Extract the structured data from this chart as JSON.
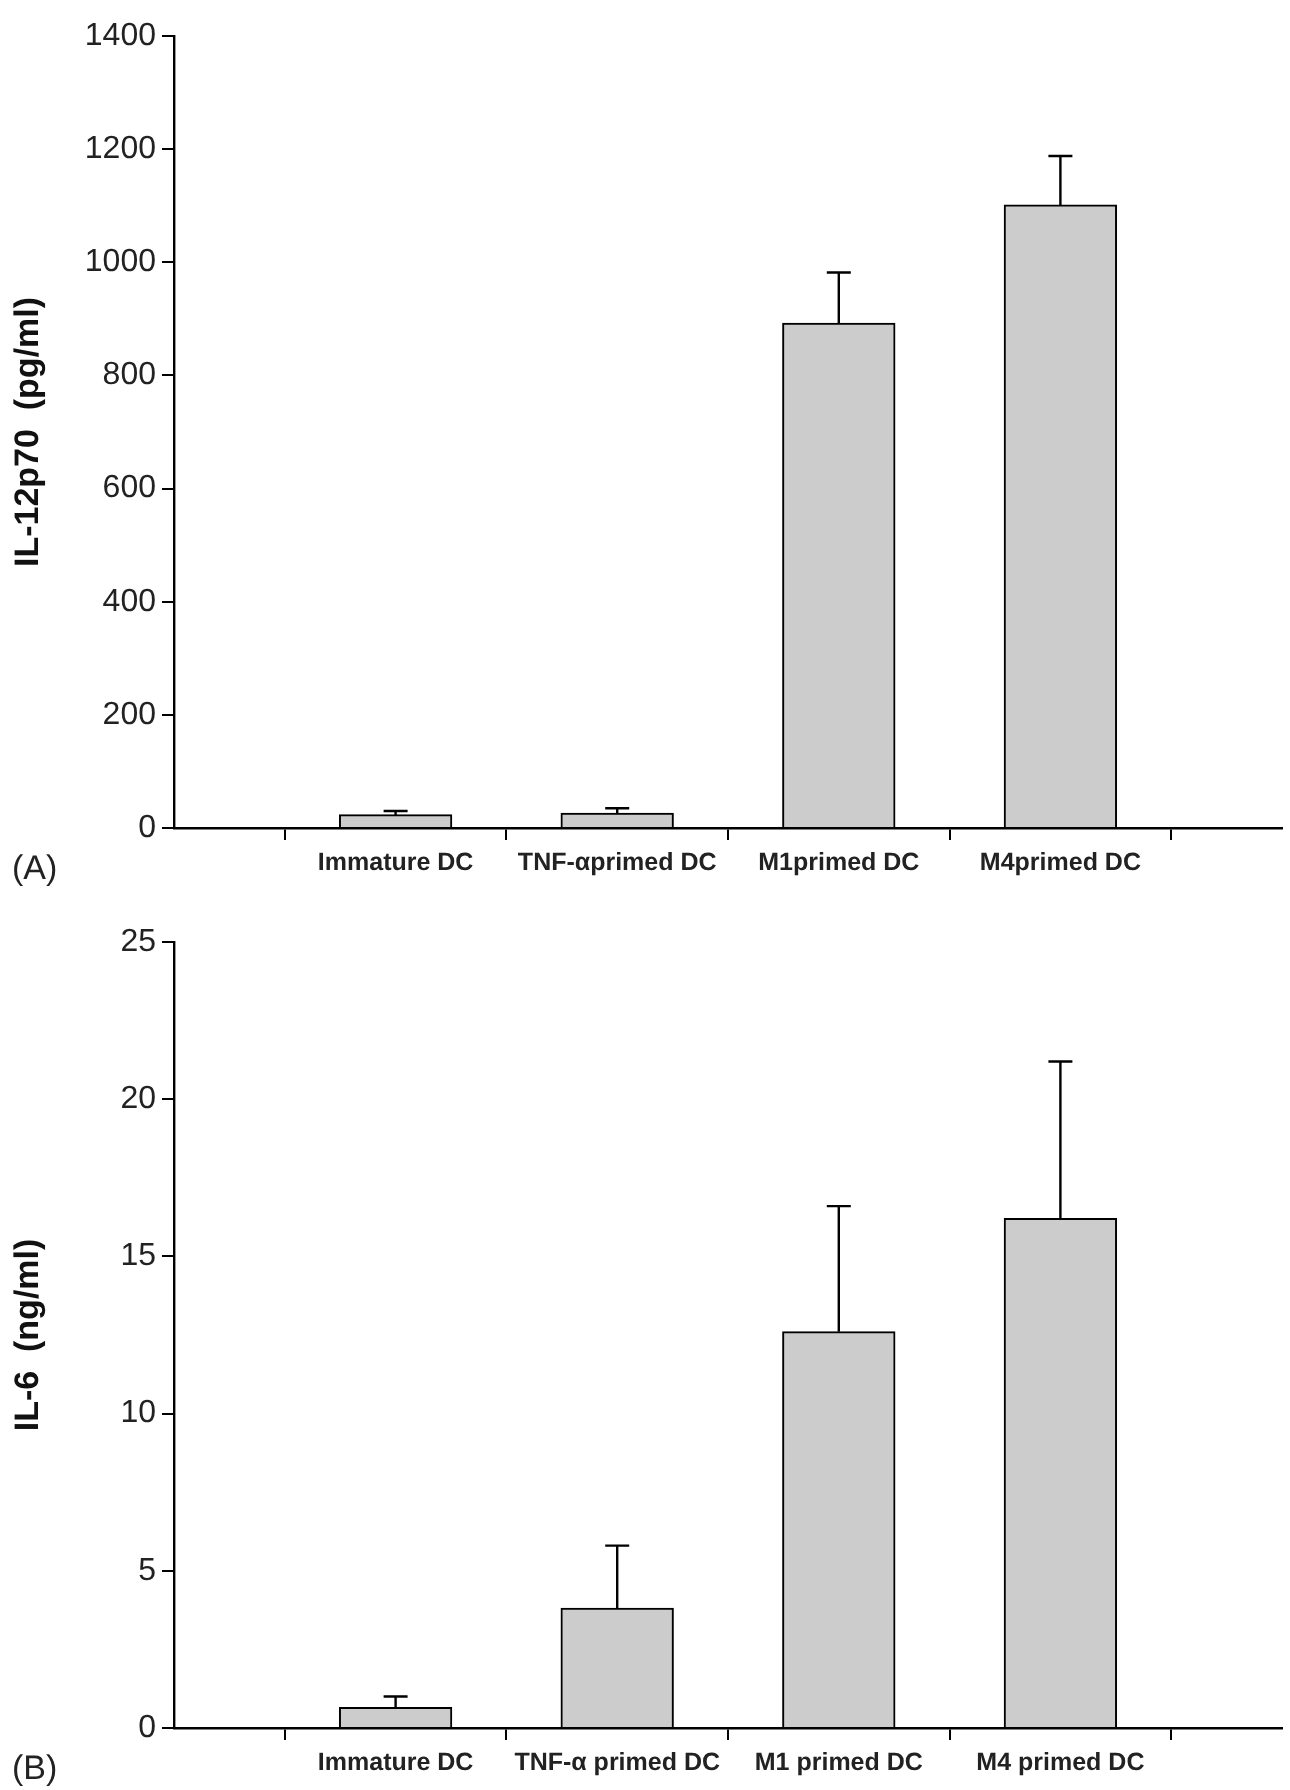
{
  "chart_data": [
    {
      "type": "bar",
      "ylabel": "IL-12p70  (pg/ml)",
      "categories": [
        null,
        "Immature DC",
        "TNF-αprimed DC",
        "M1primed DC",
        "M4primed DC",
        null
      ],
      "values": [
        null,
        23,
        26,
        892,
        1101,
        null
      ],
      "errors": [
        null,
        [
          23,
          30
        ],
        [
          26,
          35
        ],
        [
          892,
          982
        ],
        [
          1101,
          1188
        ],
        null
      ],
      "color": "#cccccc",
      "ylim": [
        0,
        1400
      ],
      "yticks": [
        0,
        200,
        400,
        600,
        800,
        1000,
        1200,
        1400
      ],
      "grid": false,
      "legend": false,
      "annotations": [
        "(A)"
      ]
    },
    {
      "type": "bar",
      "ylabel": "IL-6  (ng/ml)",
      "categories": [
        null,
        "Immature DC",
        "TNF-α primed DC",
        "M1 primed DC",
        "M4 primed DC",
        null
      ],
      "values": [
        null,
        0.65,
        3.8,
        12.6,
        16.2,
        null
      ],
      "errors": [
        null,
        [
          0.65,
          1
        ],
        [
          3.8,
          5.8
        ],
        [
          12.6,
          16.6
        ],
        [
          16.2,
          21.2
        ],
        null
      ],
      "color": "#cccccc",
      "ylim": [
        0,
        25
      ],
      "yticks": [
        0,
        5,
        10,
        15,
        20,
        25
      ],
      "grid": false,
      "legend": false,
      "annotations": [
        "(B)"
      ]
    }
  ]
}
